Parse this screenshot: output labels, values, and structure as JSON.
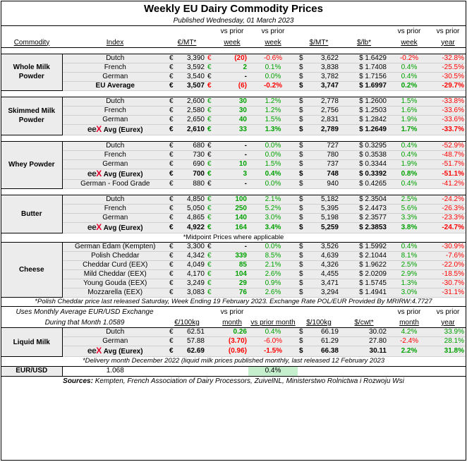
{
  "title": "Weekly EU Dairy Commodity Prices",
  "subtitle": "Published Wednesday, 01 March 2023",
  "header": {
    "commodity": "Commodity",
    "index": "Index",
    "eur_mt": "€/MT*",
    "vs_prior_week_a": "vs prior",
    "vs_prior_week_b": "week",
    "vs_prior_week2_a": "vs prior",
    "vs_prior_week2_b": "week",
    "usd_mt": "$/MT*",
    "usd_lb": "$/lb*",
    "vs_prior_week3_a": "vs prior",
    "vs_prior_week3_b": "week",
    "vs_prior_year_a": "vs prior",
    "vs_prior_year_b": "year"
  },
  "sym": {
    "eur": "€",
    "usd": "$",
    "dash": "-"
  },
  "groups": [
    {
      "name": "Whole Milk Powder",
      "rows": [
        {
          "index": "Dutch",
          "eur": "3,390",
          "chg": "(20)",
          "chg_color": "red",
          "pct": "-0.6%",
          "pct_color": "red",
          "usd": "3,622",
          "lb": "$ 1.6429",
          "wk": "-0.2%",
          "wk_color": "red",
          "yr": "-32.8%",
          "yr_color": "red",
          "bold": false,
          "eex": false
        },
        {
          "index": "French",
          "eur": "3,592",
          "chg": "2",
          "chg_color": "green",
          "pct": "0.1%",
          "pct_color": "green",
          "usd": "3,838",
          "lb": "$ 1.7408",
          "wk": "0.4%",
          "wk_color": "green",
          "yr": "-25.5%",
          "yr_color": "red",
          "bold": false,
          "eex": false
        },
        {
          "index": "German",
          "eur": "3,540",
          "chg": "-",
          "chg_color": "black",
          "pct": "0.0%",
          "pct_color": "green",
          "usd": "3,782",
          "lb": "$ 1.7156",
          "wk": "0.4%",
          "wk_color": "green",
          "yr": "-30.5%",
          "yr_color": "red",
          "bold": false,
          "eex": false
        },
        {
          "index": "EU Average",
          "eur": "3,507",
          "chg": "(6)",
          "chg_color": "red",
          "pct": "-0.2%",
          "pct_color": "red",
          "usd": "3,747",
          "lb": "$ 1.6997",
          "wk": "0.2%",
          "wk_color": "green",
          "yr": "-29.7%",
          "yr_color": "red",
          "bold": true,
          "eex": false
        }
      ]
    },
    {
      "name": "Skimmed Milk Powder",
      "rows": [
        {
          "index": "Dutch",
          "eur": "2,600",
          "chg": "30",
          "chg_color": "green",
          "pct": "1.2%",
          "pct_color": "green",
          "usd": "2,778",
          "lb": "$ 1.2600",
          "wk": "1.5%",
          "wk_color": "green",
          "yr": "-33.8%",
          "yr_color": "red",
          "bold": false,
          "eex": false
        },
        {
          "index": "French",
          "eur": "2,580",
          "chg": "30",
          "chg_color": "green",
          "pct": "1.2%",
          "pct_color": "green",
          "usd": "2,756",
          "lb": "$ 1.2503",
          "wk": "1.6%",
          "wk_color": "green",
          "yr": "-33.6%",
          "yr_color": "red",
          "bold": false,
          "eex": false
        },
        {
          "index": "German",
          "eur": "2,650",
          "chg": "40",
          "chg_color": "green",
          "pct": "1.5%",
          "pct_color": "green",
          "usd": "2,831",
          "lb": "$ 1.2842",
          "wk": "1.9%",
          "wk_color": "green",
          "yr": "-33.6%",
          "yr_color": "red",
          "bold": false,
          "eex": false
        },
        {
          "index": "Avg (Eurex)",
          "eur": "2,610",
          "chg": "33",
          "chg_color": "green",
          "pct": "1.3%",
          "pct_color": "green",
          "usd": "2,789",
          "lb": "$ 1.2649",
          "wk": "1.7%",
          "wk_color": "green",
          "yr": "-33.7%",
          "yr_color": "red",
          "bold": true,
          "eex": true
        }
      ]
    },
    {
      "name": "Whey Powder",
      "rows": [
        {
          "index": "Dutch",
          "eur": "680",
          "chg": "-",
          "chg_color": "black",
          "pct": "0.0%",
          "pct_color": "green",
          "usd": "727",
          "lb": "$ 0.3295",
          "wk": "0.4%",
          "wk_color": "green",
          "yr": "-52.9%",
          "yr_color": "red",
          "bold": false,
          "eex": false
        },
        {
          "index": "French",
          "eur": "730",
          "chg": "-",
          "chg_color": "black",
          "pct": "0.0%",
          "pct_color": "green",
          "usd": "780",
          "lb": "$ 0.3538",
          "wk": "0.4%",
          "wk_color": "green",
          "yr": "-48.7%",
          "yr_color": "red",
          "bold": false,
          "eex": false
        },
        {
          "index": "German",
          "eur": "690",
          "chg": "10",
          "chg_color": "green",
          "pct": "1.5%",
          "pct_color": "green",
          "usd": "737",
          "lb": "$ 0.3344",
          "wk": "1.9%",
          "wk_color": "green",
          "yr": "-51.7%",
          "yr_color": "red",
          "bold": false,
          "eex": false
        },
        {
          "index": "Avg (Eurex)",
          "eur": "700",
          "chg": "3",
          "chg_color": "green",
          "pct": "0.4%",
          "pct_color": "green",
          "usd": "748",
          "lb": "$ 0.3392",
          "wk": "0.8%",
          "wk_color": "green",
          "yr": "-51.1%",
          "yr_color": "red",
          "bold": true,
          "eex": true
        },
        {
          "index": "German - Food Grade",
          "eur": "880",
          "chg": "-",
          "chg_color": "black",
          "pct": "0.0%",
          "pct_color": "green",
          "usd": "940",
          "lb": "$ 0.4265",
          "wk": "0.4%",
          "wk_color": "green",
          "yr": "-41.2%",
          "yr_color": "red",
          "bold": false,
          "eex": false
        }
      ]
    },
    {
      "name": "Butter",
      "rows": [
        {
          "index": "Dutch",
          "eur": "4,850",
          "chg": "100",
          "chg_color": "green",
          "pct": "2.1%",
          "pct_color": "green",
          "usd": "5,182",
          "lb": "$ 2.3504",
          "wk": "2.5%",
          "wk_color": "green",
          "yr": "-24.2%",
          "yr_color": "red",
          "bold": false,
          "eex": false
        },
        {
          "index": "French",
          "eur": "5,050",
          "chg": "250",
          "chg_color": "green",
          "pct": "5.2%",
          "pct_color": "green",
          "usd": "5,395",
          "lb": "$ 2.4473",
          "wk": "5.6%",
          "wk_color": "green",
          "yr": "-26.3%",
          "yr_color": "red",
          "bold": false,
          "eex": false
        },
        {
          "index": "German",
          "eur": "4,865",
          "chg": "140",
          "chg_color": "green",
          "pct": "3.0%",
          "pct_color": "green",
          "usd": "5,198",
          "lb": "$ 2.3577",
          "wk": "3.3%",
          "wk_color": "green",
          "yr": "-23.3%",
          "yr_color": "red",
          "bold": false,
          "eex": false
        },
        {
          "index": "Avg (Eurex)",
          "eur": "4,922",
          "chg": "164",
          "chg_color": "green",
          "pct": "3.4%",
          "pct_color": "green",
          "usd": "5,259",
          "lb": "$ 2.3853",
          "wk": "3.8%",
          "wk_color": "green",
          "yr": "-24.7%",
          "yr_color": "red",
          "bold": true,
          "eex": true
        }
      ]
    },
    {
      "name": "Cheese",
      "pre_note": "*Midpoint Prices where applicable",
      "rows": [
        {
          "index": "German Edam (Kempten)",
          "eur": "3,300",
          "chg": "-",
          "chg_color": "black",
          "pct": "0.0%",
          "pct_color": "green",
          "usd": "3,526",
          "lb": "$ 1.5992",
          "wk": "0.4%",
          "wk_color": "green",
          "yr": "-30.9%",
          "yr_color": "red",
          "bold": false,
          "eex": false
        },
        {
          "index": "Polish Cheddar",
          "eur": "4,342",
          "chg": "339",
          "chg_color": "green",
          "pct": "8.5%",
          "pct_color": "green",
          "usd": "4,639",
          "lb": "$ 2.1044",
          "wk": "8.1%",
          "wk_color": "green",
          "yr": "-7.6%",
          "yr_color": "red",
          "bold": false,
          "eex": false
        },
        {
          "index": "Cheddar Curd (EEX)",
          "eur": "4,049",
          "chg": "85",
          "chg_color": "green",
          "pct": "2.1%",
          "pct_color": "green",
          "usd": "4,326",
          "lb": "$ 1.9622",
          "wk": "2.5%",
          "wk_color": "green",
          "yr": "-22.0%",
          "yr_color": "red",
          "bold": false,
          "eex": false
        },
        {
          "index": "Mild Cheddar (EEX)",
          "eur": "4,170",
          "chg": "104",
          "chg_color": "green",
          "pct": "2.6%",
          "pct_color": "green",
          "usd": "4,455",
          "lb": "$ 2.0209",
          "wk": "2.9%",
          "wk_color": "green",
          "yr": "-18.5%",
          "yr_color": "red",
          "bold": false,
          "eex": false
        },
        {
          "index": "Young Gouda (EEX)",
          "eur": "3,249",
          "chg": "29",
          "chg_color": "green",
          "pct": "0.9%",
          "pct_color": "green",
          "usd": "3,471",
          "lb": "$ 1.5745",
          "wk": "1.3%",
          "wk_color": "green",
          "yr": "-30.7%",
          "yr_color": "red",
          "bold": false,
          "eex": false
        },
        {
          "index": "Mozzarella (EEX)",
          "eur": "3,083",
          "chg": "76",
          "chg_color": "green",
          "pct": "2.6%",
          "pct_color": "green",
          "usd": "3,294",
          "lb": "$ 1.4941",
          "wk": "3.0%",
          "wk_color": "green",
          "yr": "-31.1%",
          "yr_color": "red",
          "bold": false,
          "eex": false
        }
      ]
    }
  ],
  "cheese_note": "*Polish Cheddar price last released Saturday, Week Ending 19 February 2023. Exchange Rate POL/EUR Provided By MRIRW:4.7727",
  "liquid_header": {
    "note_a": "Uses Monthly Average EUR/USD Exchange",
    "note_b": "During that Month 1.0589",
    "eur_100kg": "€/100kg",
    "vs_prior_month_a": "vs prior",
    "vs_prior_month_b": "month",
    "vs_prior_month2": "vs prior month",
    "usd_100kg": "$/100kg",
    "usd_cwt": "$/cwt*",
    "vs_prior_month3_a": "vs prior",
    "vs_prior_month3_b": "month",
    "vs_prior_year_a": "vs prior",
    "vs_prior_year_b": "year"
  },
  "liquid_milk": {
    "name": "Liquid Milk",
    "rows": [
      {
        "index": "Dutch",
        "eur": "62.51",
        "chg": "0.26",
        "chg_color": "green",
        "pct": "0.4%",
        "pct_color": "green",
        "usd": "66.19",
        "cwt": "30.02",
        "mo": "4.2%",
        "mo_color": "green",
        "yr": "33.9%",
        "yr_color": "green",
        "bold": false,
        "eex": false
      },
      {
        "index": "German",
        "eur": "57.88",
        "chg": "(3.70)",
        "chg_color": "red",
        "pct": "-6.0%",
        "pct_color": "red",
        "usd": "61.29",
        "cwt": "27.80",
        "mo": "-2.4%",
        "mo_color": "red",
        "yr": "28.1%",
        "yr_color": "green",
        "bold": false,
        "eex": false
      },
      {
        "index": "Avg (Eurex)",
        "eur": "62.69",
        "chg": "(0.96)",
        "chg_color": "red",
        "pct": "-1.5%",
        "pct_color": "red",
        "usd": "66.38",
        "cwt": "30.11",
        "mo": "2.2%",
        "mo_color": "green",
        "yr": "31.8%",
        "yr_color": "green",
        "bold": true,
        "eex": true
      }
    ]
  },
  "liquid_note": "*Delivery month  December 2022 (liquid milk prices published monthly, last released 12 February 2023",
  "eurusd": {
    "label": "EUR/USD",
    "value": "1.068",
    "change": "0.4%"
  },
  "sources": {
    "label": "Sources:",
    "text": "Kempten, French Association of Dairy Processors, ZuivelNL, Ministerstwo Rolnictwa i Rozwoju Wsi"
  },
  "logo": {
    "e": "ee",
    "x": "X"
  },
  "colors": {
    "red": "#ff0000",
    "green": "#00a000",
    "band": "#ececec",
    "highlight": "#c6efce",
    "logo_x": "#e4002b"
  }
}
